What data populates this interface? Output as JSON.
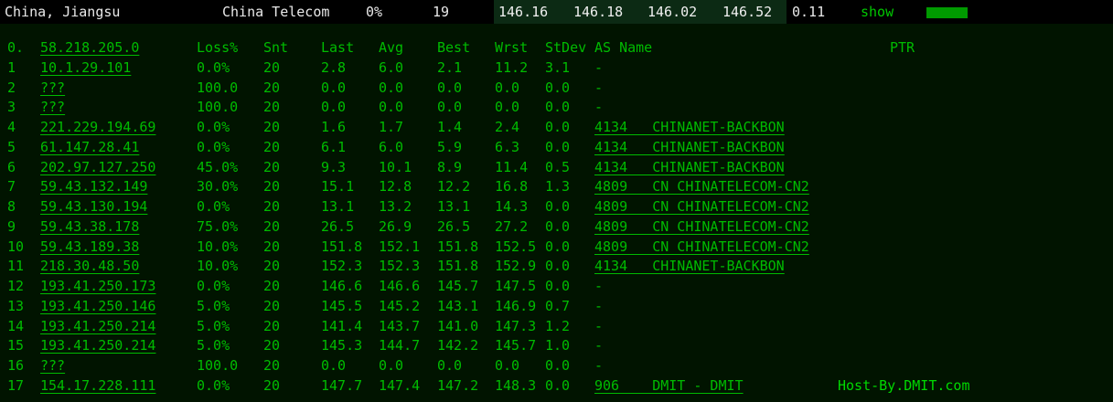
{
  "top_bar": {
    "location": "China, Jiangsu",
    "isp": "China Telecom",
    "loss": "0%",
    "recv": "19",
    "last": "146.16",
    "avg": "146.18",
    "best": "146.02",
    "worst": "146.52",
    "stdev": "0.11",
    "show_label": "show",
    "colors": {
      "bar": "#009a00",
      "band_bg": "#0c2a14"
    }
  },
  "table": {
    "header": {
      "hop": "0.",
      "host": "58.218.205.0",
      "loss": "Loss%",
      "snt": "Snt",
      "last": "Last",
      "avg": "Avg",
      "best": "Best",
      "wrst": "Wrst",
      "stdev": "StDev",
      "as": "AS Name",
      "ptr": "PTR"
    },
    "rows": [
      {
        "hop": "1",
        "host": "10.1.29.101",
        "loss": "0.0%",
        "snt": "20",
        "last": "2.8",
        "avg": "6.0",
        "best": "2.1",
        "wrst": "11.2",
        "stdev": "3.1",
        "as": "-",
        "ptr": ""
      },
      {
        "hop": "2",
        "host": "???",
        "loss": "100.0",
        "snt": "20",
        "last": "0.0",
        "avg": "0.0",
        "best": "0.0",
        "wrst": "0.0",
        "stdev": "0.0",
        "as": "-",
        "ptr": ""
      },
      {
        "hop": "3",
        "host": "???",
        "loss": "100.0",
        "snt": "20",
        "last": "0.0",
        "avg": "0.0",
        "best": "0.0",
        "wrst": "0.0",
        "stdev": "0.0",
        "as": "-",
        "ptr": ""
      },
      {
        "hop": "4",
        "host": "221.229.194.69",
        "loss": "0.0%",
        "snt": "20",
        "last": "1.6",
        "avg": "1.7",
        "best": "1.4",
        "wrst": "2.4",
        "stdev": "0.0",
        "as": "4134   CHINANET-BACKBON",
        "ptr": ""
      },
      {
        "hop": "5",
        "host": "61.147.28.41",
        "loss": "0.0%",
        "snt": "20",
        "last": "6.1",
        "avg": "6.0",
        "best": "5.9",
        "wrst": "6.3",
        "stdev": "0.0",
        "as": "4134   CHINANET-BACKBON",
        "ptr": ""
      },
      {
        "hop": "6",
        "host": "202.97.127.250",
        "loss": "45.0%",
        "snt": "20",
        "last": "9.3",
        "avg": "10.1",
        "best": "8.9",
        "wrst": "11.4",
        "stdev": "0.5",
        "as": "4134   CHINANET-BACKBON",
        "ptr": ""
      },
      {
        "hop": "7",
        "host": "59.43.132.149",
        "loss": "30.0%",
        "snt": "20",
        "last": "15.1",
        "avg": "12.8",
        "best": "12.2",
        "wrst": "16.8",
        "stdev": "1.3",
        "as": "4809   CN CHINATELECOM-CN2",
        "ptr": ""
      },
      {
        "hop": "8",
        "host": "59.43.130.194",
        "loss": "0.0%",
        "snt": "20",
        "last": "13.1",
        "avg": "13.2",
        "best": "13.1",
        "wrst": "14.3",
        "stdev": "0.0",
        "as": "4809   CN CHINATELECOM-CN2",
        "ptr": ""
      },
      {
        "hop": "9",
        "host": "59.43.38.178",
        "loss": "75.0%",
        "snt": "20",
        "last": "26.5",
        "avg": "26.9",
        "best": "26.5",
        "wrst": "27.2",
        "stdev": "0.0",
        "as": "4809   CN CHINATELECOM-CN2",
        "ptr": ""
      },
      {
        "hop": "10",
        "host": "59.43.189.38",
        "loss": "10.0%",
        "snt": "20",
        "last": "151.8",
        "avg": "152.1",
        "best": "151.8",
        "wrst": "152.5",
        "stdev": "0.0",
        "as": "4809   CN CHINATELECOM-CN2",
        "ptr": ""
      },
      {
        "hop": "11",
        "host": "218.30.48.50",
        "loss": "10.0%",
        "snt": "20",
        "last": "152.3",
        "avg": "152.3",
        "best": "151.8",
        "wrst": "152.9",
        "stdev": "0.0",
        "as": "4134   CHINANET-BACKBON",
        "ptr": ""
      },
      {
        "hop": "12",
        "host": "193.41.250.173",
        "loss": "0.0%",
        "snt": "20",
        "last": "146.6",
        "avg": "146.6",
        "best": "145.7",
        "wrst": "147.5",
        "stdev": "0.0",
        "as": "-",
        "ptr": ""
      },
      {
        "hop": "13",
        "host": "193.41.250.146",
        "loss": "5.0%",
        "snt": "20",
        "last": "145.5",
        "avg": "145.2",
        "best": "143.1",
        "wrst": "146.9",
        "stdev": "0.7",
        "as": "-",
        "ptr": ""
      },
      {
        "hop": "14",
        "host": "193.41.250.214",
        "loss": "5.0%",
        "snt": "20",
        "last": "141.4",
        "avg": "143.7",
        "best": "141.0",
        "wrst": "147.3",
        "stdev": "1.2",
        "as": "-",
        "ptr": ""
      },
      {
        "hop": "15",
        "host": "193.41.250.214",
        "loss": "5.0%",
        "snt": "20",
        "last": "145.3",
        "avg": "144.7",
        "best": "142.2",
        "wrst": "145.7",
        "stdev": "1.0",
        "as": "-",
        "ptr": ""
      },
      {
        "hop": "16",
        "host": "???",
        "loss": "100.0",
        "snt": "20",
        "last": "0.0",
        "avg": "0.0",
        "best": "0.0",
        "wrst": "0.0",
        "stdev": "0.0",
        "as": "-",
        "ptr": ""
      },
      {
        "hop": "17",
        "host": "154.17.228.111",
        "loss": "0.0%",
        "snt": "20",
        "last": "147.7",
        "avg": "147.4",
        "best": "147.2",
        "wrst": "148.3",
        "stdev": "0.0",
        "as": "906    DMIT - DMIT",
        "ptr": "Host-By.DMIT.com"
      }
    ]
  }
}
